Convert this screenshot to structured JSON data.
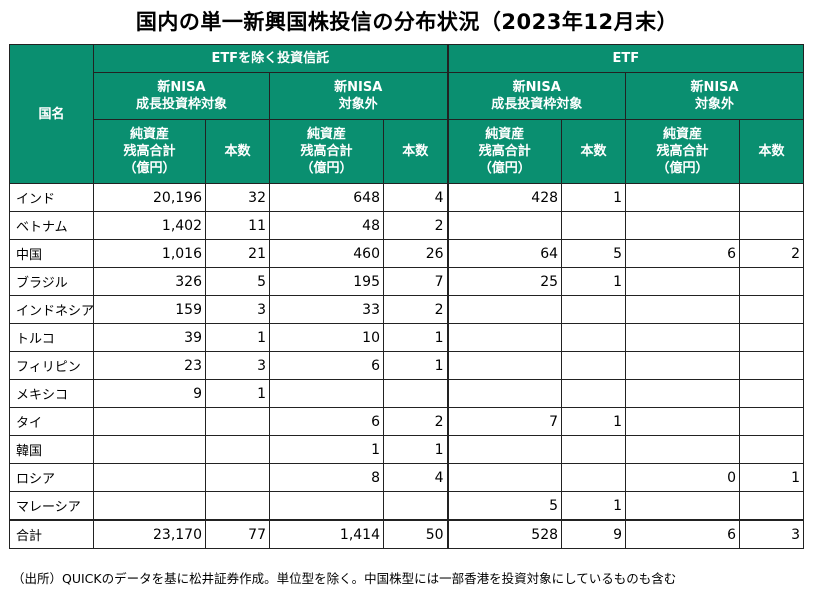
{
  "title": "国内の単一新興国株投信の分布状況（2023年12月末）",
  "headers": {
    "country": "国名",
    "group_etf_excl": "ETFを除く投資信託",
    "group_etf": "ETF",
    "nisa_growth": "新NISA\n成長投資枠対象",
    "nisa_excluded": "新NISA\n対象外",
    "net_assets": "純資産\n残高合計\n（億円）",
    "count": "本数"
  },
  "rows": [
    {
      "name": "インド",
      "v": [
        "20,196",
        "32",
        "648",
        "4",
        "428",
        "1",
        "",
        ""
      ]
    },
    {
      "name": "ベトナム",
      "v": [
        "1,402",
        "11",
        "48",
        "2",
        "",
        "",
        "",
        ""
      ]
    },
    {
      "name": "中国",
      "v": [
        "1,016",
        "21",
        "460",
        "26",
        "64",
        "5",
        "6",
        "2"
      ]
    },
    {
      "name": "ブラジル",
      "v": [
        "326",
        "5",
        "195",
        "7",
        "25",
        "1",
        "",
        ""
      ]
    },
    {
      "name": "インドネシア",
      "v": [
        "159",
        "3",
        "33",
        "2",
        "",
        "",
        "",
        ""
      ]
    },
    {
      "name": "トルコ",
      "v": [
        "39",
        "1",
        "10",
        "1",
        "",
        "",
        "",
        ""
      ]
    },
    {
      "name": "フィリピン",
      "v": [
        "23",
        "3",
        "6",
        "1",
        "",
        "",
        "",
        ""
      ]
    },
    {
      "name": "メキシコ",
      "v": [
        "9",
        "1",
        "",
        "",
        "",
        "",
        "",
        ""
      ]
    },
    {
      "name": "タイ",
      "v": [
        "",
        "",
        "6",
        "2",
        "7",
        "1",
        "",
        ""
      ]
    },
    {
      "name": "韓国",
      "v": [
        "",
        "",
        "1",
        "1",
        "",
        "",
        "",
        ""
      ]
    },
    {
      "name": "ロシア",
      "v": [
        "",
        "",
        "8",
        "4",
        "",
        "",
        "0",
        "1"
      ]
    },
    {
      "name": "マレーシア",
      "v": [
        "",
        "",
        "",
        "",
        "5",
        "1",
        "",
        ""
      ]
    }
  ],
  "total": {
    "name": "合計",
    "v": [
      "23,170",
      "77",
      "1,414",
      "50",
      "528",
      "9",
      "6",
      "3"
    ]
  },
  "footnote": "（出所）QUICKのデータを基に松井証券作成。単位型を除く。中国株型には一部香港を投資対象にしているものも含む"
}
